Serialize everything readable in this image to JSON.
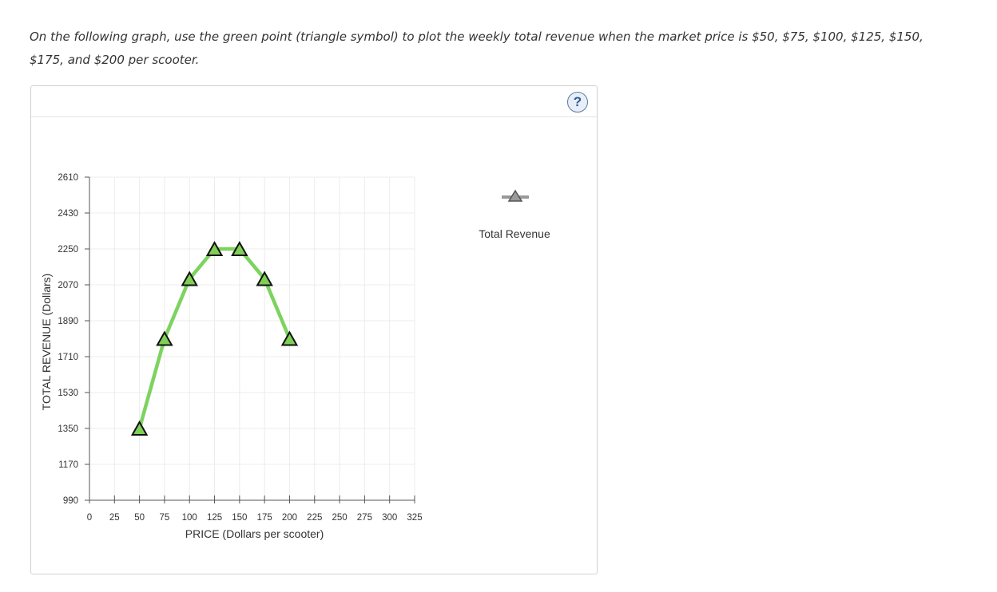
{
  "instructions": {
    "line1": "On the following graph, use the green point (triangle symbol) to plot the weekly total revenue when the market price is $50, $75, $100, $125, $150,",
    "line2": "$175, and $200 per scooter."
  },
  "help_button": {
    "label": "?"
  },
  "colors": {
    "series_line": "#7dd35f",
    "marker_fill": "#7fcf55",
    "grid": "#ececec",
    "axis": "#555555",
    "legend_marker": "#999999"
  },
  "chart_data": {
    "type": "line",
    "title": "",
    "xlabel": "PRICE (Dollars per scooter)",
    "ylabel": "TOTAL REVENUE (Dollars)",
    "xlim": [
      0,
      325
    ],
    "ylim": [
      990,
      2610
    ],
    "xticks": [
      0,
      25,
      50,
      75,
      100,
      125,
      150,
      175,
      200,
      225,
      250,
      275,
      300,
      325
    ],
    "yticks": [
      990,
      1170,
      1350,
      1530,
      1710,
      1890,
      2070,
      2250,
      2430,
      2610
    ],
    "grid": true,
    "legend_position": "right",
    "series": [
      {
        "name": "Total Revenue",
        "marker": "triangle",
        "x": [
          50,
          75,
          100,
          125,
          150,
          175,
          200
        ],
        "y": [
          1350,
          1800,
          2100,
          2250,
          2250,
          2100,
          1800
        ]
      }
    ]
  }
}
